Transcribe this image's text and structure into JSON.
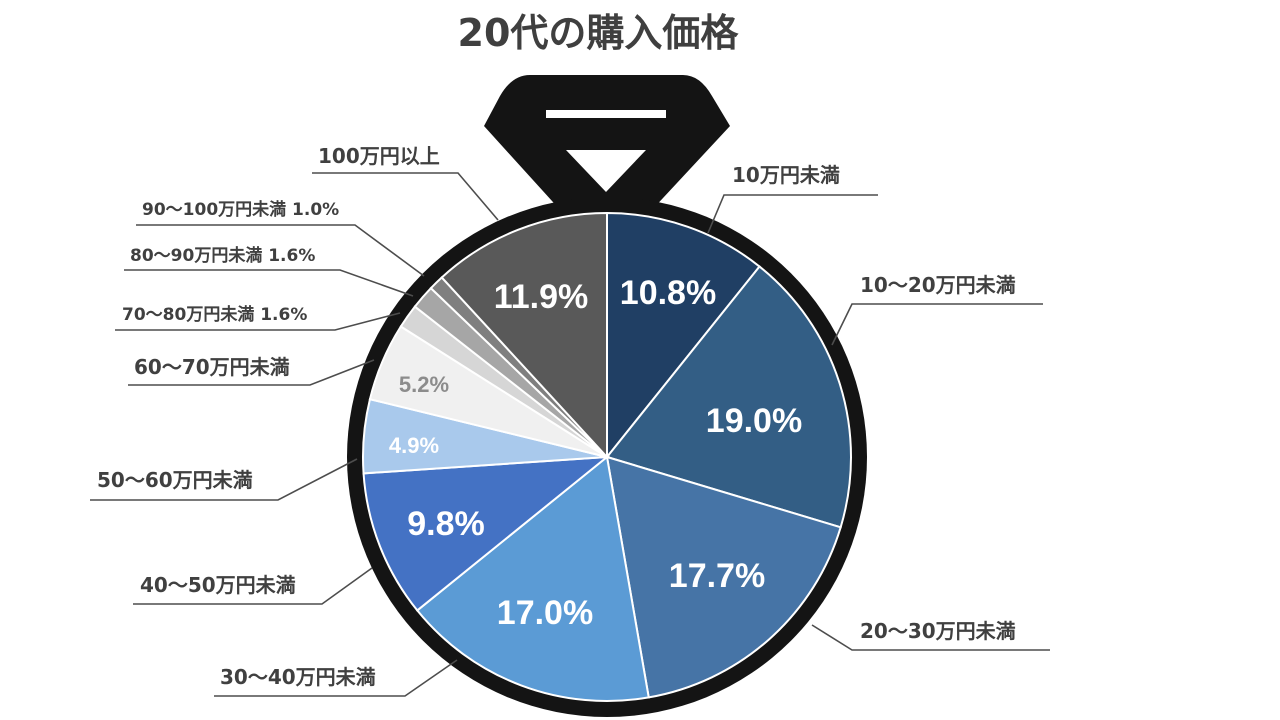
{
  "chart_data": {
    "type": "pie",
    "title": "20代の購入価格",
    "slices": [
      {
        "category": "10万円未満",
        "value": 10.8,
        "value_label": "10.8%",
        "inline_value": false,
        "color": "#203f64",
        "value_color": "#ffffff"
      },
      {
        "category": "10〜20万円未満",
        "value": 19.0,
        "value_label": "19.0%",
        "inline_value": false,
        "color": "#335e85",
        "value_color": "#ffffff"
      },
      {
        "category": "20〜30万円未満",
        "value": 17.7,
        "value_label": "17.7%",
        "inline_value": false,
        "color": "#4674a6",
        "value_color": "#ffffff"
      },
      {
        "category": "30〜40万円未満",
        "value": 17.0,
        "value_label": "17.0%",
        "inline_value": false,
        "color": "#5b9bd5",
        "value_color": "#ffffff"
      },
      {
        "category": "40〜50万円未満",
        "value": 9.8,
        "value_label": "9.8%",
        "inline_value": false,
        "color": "#4472c4",
        "value_color": "#ffffff"
      },
      {
        "category": "50〜60万円未満",
        "value": 4.9,
        "value_label": "4.9%",
        "inline_value": false,
        "color": "#a9c9ec",
        "value_color": "#ffffff"
      },
      {
        "category": "60〜70万円未満",
        "value": 5.2,
        "value_label": "5.2%",
        "inline_value": false,
        "color": "#f0f0f0",
        "value_color": "#8c8c8c"
      },
      {
        "category": "70〜80万円未満",
        "value": 1.6,
        "value_label": "1.6%",
        "inline_value": true,
        "color": "#d6d6d6",
        "value_color": "#404040"
      },
      {
        "category": "80〜90万円未満",
        "value": 1.6,
        "value_label": "1.6%",
        "inline_value": true,
        "color": "#a6a6a6",
        "value_color": "#404040"
      },
      {
        "category": "90〜100万円未満",
        "value": 1.0,
        "value_label": "1.0%",
        "inline_value": true,
        "color": "#7f7f7f",
        "value_color": "#404040"
      },
      {
        "category": "100万円以上",
        "value": 11.9,
        "value_label": "11.9%",
        "inline_value": false,
        "color": "#595959",
        "value_color": "#ffffff"
      }
    ],
    "start_angle": "12 o'clock",
    "direction": "clockwise",
    "frame_color": "#141414",
    "legend": "none"
  }
}
